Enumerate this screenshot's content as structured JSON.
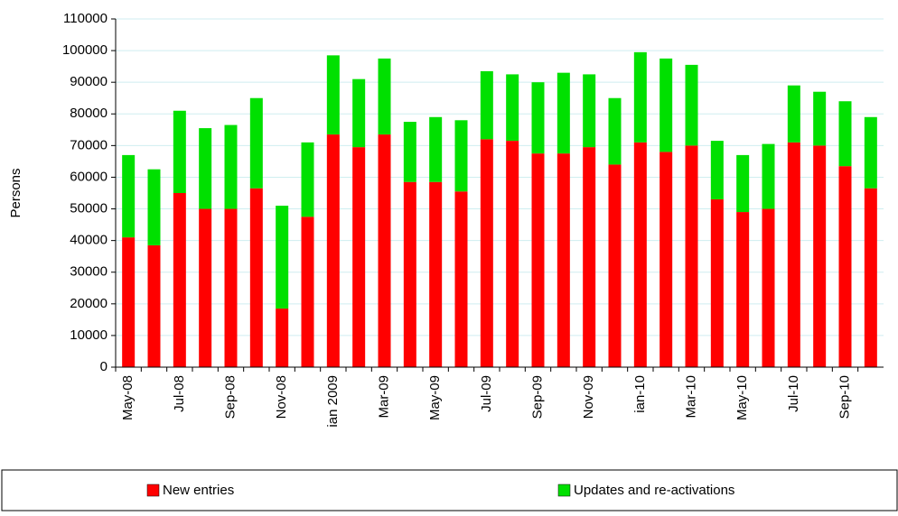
{
  "chart_data": {
    "type": "stacked_bar",
    "categories": [
      "May-08",
      null,
      "Jul-08",
      null,
      "Sep-08",
      null,
      "Nov-08",
      null,
      "ian 2009",
      null,
      "Mar-09",
      null,
      "May-09",
      null,
      "Jul-09",
      null,
      "Sep-09",
      null,
      "Nov-09",
      null,
      "ian-10",
      null,
      "Mar-10",
      null,
      "May-10",
      null,
      "Jul-10",
      null,
      "Sep-10",
      null
    ],
    "series": [
      {
        "name": "New entries",
        "color": "#ff0000",
        "values": [
          41000,
          38500,
          55000,
          50000,
          50000,
          56500,
          18500,
          47500,
          73500,
          69500,
          73500,
          58500,
          58500,
          55500,
          72000,
          71500,
          67500,
          67500,
          69500,
          64000,
          71000,
          68000,
          70000,
          53000,
          49000,
          50000,
          71000,
          70000,
          63500,
          56500
        ]
      },
      {
        "name": "Updates and re-activations",
        "color": "#00e000",
        "values": [
          26000,
          24000,
          26000,
          25500,
          26500,
          28500,
          32500,
          23500,
          25000,
          21500,
          24000,
          19000,
          20500,
          22500,
          21500,
          21000,
          22500,
          25500,
          23000,
          21000,
          28500,
          29500,
          25500,
          18500,
          18000,
          20500,
          18000,
          17000,
          20500,
          22500
        ]
      }
    ],
    "y_label": "Persons",
    "ylim": [
      0,
      110000
    ],
    "yticks": [
      0,
      10000,
      20000,
      30000,
      40000,
      50000,
      60000,
      70000,
      80000,
      90000,
      100000,
      110000
    ],
    "grid": true,
    "legend": "bottom"
  }
}
